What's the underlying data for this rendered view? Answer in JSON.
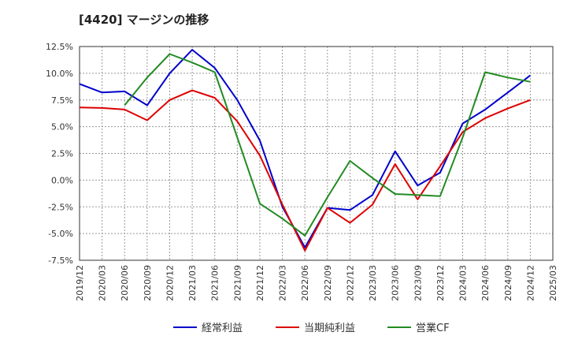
{
  "chart_data": {
    "type": "line",
    "title": "[4420]  マージンの推移",
    "xlabel": "",
    "ylabel": "",
    "ylim": [
      -7.5,
      12.5
    ],
    "yticks": [
      12.5,
      10.0,
      7.5,
      5.0,
      2.5,
      0.0,
      -2.5,
      -5.0,
      -7.5
    ],
    "ytick_labels": [
      "12.5%",
      "10.0%",
      "7.5%",
      "5.0%",
      "2.5%",
      "0.0%",
      "-2.5%",
      "-5.0%",
      "-7.5%"
    ],
    "categories": [
      "2019/12",
      "2020/03",
      "2020/06",
      "2020/09",
      "2020/12",
      "2021/03",
      "2021/06",
      "2021/09",
      "2021/12",
      "2022/03",
      "2022/06",
      "2022/09",
      "2022/12",
      "2023/03",
      "2023/06",
      "2023/09",
      "2023/12",
      "2024/03",
      "2024/06",
      "2024/09",
      "2024/12",
      "2025/03"
    ],
    "grid": true,
    "legend_position": "bottom",
    "series": [
      {
        "name": "経常利益",
        "color": "#0000cc",
        "values": [
          9.0,
          8.2,
          8.3,
          7.0,
          10.0,
          12.2,
          10.5,
          7.5,
          3.7,
          -2.5,
          -6.3,
          -2.6,
          -2.8,
          -1.4,
          2.7,
          -0.5,
          0.7,
          5.3,
          6.6,
          8.2,
          9.8,
          null
        ]
      },
      {
        "name": "当期純利益",
        "color": "#dd0000",
        "values": [
          6.8,
          6.75,
          6.6,
          5.6,
          7.5,
          8.4,
          7.7,
          5.5,
          2.3,
          -2.3,
          -6.6,
          -2.6,
          -4.0,
          -2.3,
          1.5,
          -1.8,
          1.3,
          4.5,
          5.8,
          6.7,
          7.5,
          null
        ]
      },
      {
        "name": "営業CF",
        "color": "#228B22",
        "values": [
          null,
          null,
          7.0,
          9.6,
          11.8,
          11.0,
          10.1,
          4.0,
          -2.2,
          -3.6,
          -5.2,
          -1.6,
          1.8,
          0.2,
          -1.3,
          -1.4,
          -1.5,
          4.0,
          10.1,
          9.6,
          9.2,
          null
        ]
      }
    ]
  }
}
